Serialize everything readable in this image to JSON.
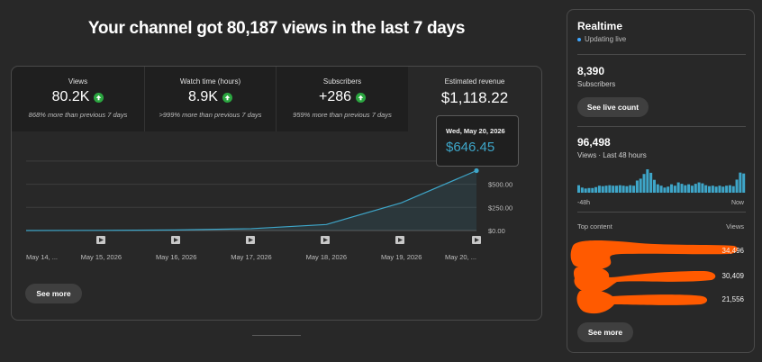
{
  "headline": "Your channel got 80,187 views in the last 7 days",
  "metrics": [
    {
      "label": "Views",
      "value": "80.2K",
      "change": "868% more than previous 7 days"
    },
    {
      "label": "Watch time (hours)",
      "value": "8.9K",
      "change": ">999% more than previous 7 days"
    },
    {
      "label": "Subscribers",
      "value": "+286",
      "change": "959% more than previous 7 days"
    },
    {
      "label": "Estimated revenue",
      "value": "$1,118.22"
    }
  ],
  "tooltip": {
    "date": "Wed, May 20, 2026",
    "value": "$646.45"
  },
  "chart_data": {
    "type": "area",
    "x": [
      "May 14, ...",
      "May 15, 2026",
      "May 16, 2026",
      "May 17, 2026",
      "May 18, 2026",
      "May 19, 2026",
      "May 20, ..."
    ],
    "series": [
      {
        "values": [
          0,
          2,
          6,
          20,
          65,
          300,
          646.45
        ]
      }
    ],
    "y_ticks": [
      "$500.00",
      "$250.00",
      "$0.00"
    ],
    "ylim": [
      0,
      700
    ],
    "grid": true,
    "color": "#3ea6c9"
  },
  "see_more_label": "See more",
  "realtime": {
    "title": "Realtime",
    "status": "Updating live",
    "subscribers_value": "8,390",
    "subscribers_label": "Subscribers",
    "live_count_label": "See live count",
    "views_value": "96,498",
    "views_label": "Views · Last 48 hours",
    "axis_start": "-48h",
    "axis_end": "Now",
    "bars": [
      0.32,
      0.22,
      0.18,
      0.2,
      0.2,
      0.24,
      0.3,
      0.28,
      0.3,
      0.32,
      0.3,
      0.3,
      0.32,
      0.3,
      0.28,
      0.32,
      0.3,
      0.52,
      0.6,
      0.8,
      1.0,
      0.85,
      0.55,
      0.36,
      0.3,
      0.22,
      0.26,
      0.36,
      0.3,
      0.44,
      0.38,
      0.32,
      0.36,
      0.3,
      0.38,
      0.44,
      0.4,
      0.32,
      0.28,
      0.3,
      0.26,
      0.3,
      0.26,
      0.3,
      0.32,
      0.28,
      0.56,
      0.86,
      0.82
    ],
    "bar_color": "#3ea6c9",
    "top_content_label": "Top content",
    "views_col_label": "Views",
    "top_content": [
      {
        "views": "34,496"
      },
      {
        "views": "30,409"
      },
      {
        "views": "21,556"
      }
    ],
    "redaction_color": "#ff5a00",
    "see_more_label": "See more"
  }
}
